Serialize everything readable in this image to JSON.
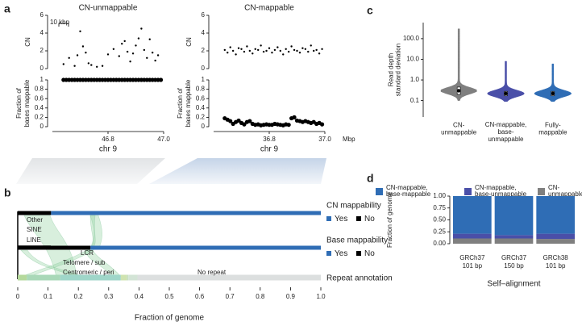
{
  "chart_data": [
    {
      "type": "scatter",
      "panel": "a",
      "title": "CN-unmappable",
      "ylabel": "CN",
      "annotation": "10 kbp",
      "color": "#000000",
      "x": [
        46.64,
        46.66,
        46.68,
        46.69,
        46.7,
        46.71,
        46.72,
        46.73,
        46.74,
        46.76,
        46.78,
        46.8,
        46.82,
        46.84,
        46.85,
        46.86,
        46.87,
        46.88,
        46.89,
        46.9,
        46.91,
        46.92,
        46.93,
        46.94,
        46.95,
        46.96,
        46.97,
        46.98
      ],
      "y": [
        0.5,
        1.2,
        0.3,
        1.5,
        4.2,
        2.5,
        1.8,
        0.6,
        0.4,
        0.2,
        0.3,
        1.6,
        2.2,
        1.4,
        2.8,
        3.1,
        1.9,
        0.8,
        1.7,
        2.6,
        3.4,
        4.5,
        2.1,
        1.2,
        3.3,
        1.8,
        0.9,
        1.5
      ],
      "xlim": [
        46.6,
        47.0
      ],
      "ylim": [
        0,
        6
      ],
      "yticks": [
        0,
        2,
        4,
        6
      ]
    },
    {
      "type": "scatter",
      "ylabel": [
        "Fraction of",
        "bases mappable"
      ],
      "xlabel": "chr 9",
      "color": "#000000",
      "x": [
        46.64,
        46.65,
        46.66,
        46.67,
        46.68,
        46.69,
        46.7,
        46.71,
        46.72,
        46.73,
        46.74,
        46.75,
        46.76,
        46.77,
        46.78,
        46.79,
        46.8,
        46.81,
        46.82,
        46.83,
        46.84,
        46.85,
        46.86,
        46.87,
        46.88,
        46.89,
        46.9,
        46.91,
        46.92,
        46.93,
        46.94,
        46.95,
        46.96,
        46.97,
        46.98,
        46.99
      ],
      "y": [
        1,
        1,
        1,
        1,
        1,
        1,
        1,
        1,
        1,
        1,
        1,
        1,
        1,
        1,
        1,
        1,
        1,
        1,
        1,
        1,
        1,
        1,
        1,
        1,
        1,
        1,
        1,
        1,
        1,
        1,
        1,
        1,
        1,
        1,
        1,
        1
      ],
      "xlim": [
        46.6,
        47.0
      ],
      "ylim": [
        0,
        1
      ],
      "yticks": [
        0,
        0.2,
        0.4,
        0.6,
        0.8,
        1
      ],
      "xticks": [
        46.8,
        {
          "value": 47,
          "label": "47.0"
        }
      ]
    },
    {
      "type": "scatter",
      "title": "CN-mappable",
      "title_color": "#2f6db5",
      "ylabel": "CN",
      "color": "#000000",
      "x": [
        36.64,
        36.65,
        36.66,
        36.67,
        36.68,
        36.69,
        36.7,
        36.71,
        36.72,
        36.73,
        36.74,
        36.75,
        36.76,
        36.77,
        36.78,
        36.79,
        36.8,
        36.81,
        36.82,
        36.83,
        36.84,
        36.85,
        36.86,
        36.87,
        36.88,
        36.89,
        36.9,
        36.91,
        36.92,
        36.93,
        36.94,
        36.95,
        36.96,
        36.97,
        36.98,
        36.99
      ],
      "y": [
        2.1,
        1.8,
        2.4,
        2.0,
        1.6,
        2.3,
        2.2,
        1.9,
        2.5,
        2.0,
        1.7,
        2.2,
        2.1,
        2.6,
        1.9,
        2.0,
        2.3,
        1.8,
        2.1,
        2.4,
        2.0,
        1.6,
        2.2,
        1.9,
        2.5,
        2.1,
        2.0,
        1.8,
        2.3,
        2.2,
        1.9,
        2.6,
        2.0,
        2.1,
        1.7,
        2.2
      ],
      "xlim": [
        36.6,
        37.0
      ],
      "ylim": [
        0,
        6
      ],
      "yticks": [
        0,
        2,
        4,
        6
      ]
    },
    {
      "type": "scatter",
      "ylabel": [
        "Fraction of",
        "bases mappable"
      ],
      "xlabel": "chr 9",
      "x_unit": "Mbp",
      "color": "#000000",
      "x": [
        36.64,
        36.65,
        36.66,
        36.67,
        36.68,
        36.69,
        36.7,
        36.71,
        36.72,
        36.73,
        36.74,
        36.75,
        36.76,
        36.77,
        36.78,
        36.79,
        36.8,
        36.81,
        36.82,
        36.83,
        36.84,
        36.85,
        36.86,
        36.87,
        36.88,
        36.89,
        36.9,
        36.91,
        36.92,
        36.93,
        36.94,
        36.95,
        36.96,
        36.97,
        36.98,
        36.99
      ],
      "y": [
        0.18,
        0.15,
        0.12,
        0.06,
        0.1,
        0.13,
        0.08,
        0.05,
        0.1,
        0.12,
        0.06,
        0.04,
        0.05,
        0.03,
        0.04,
        0.05,
        0.04,
        0.04,
        0.06,
        0.05,
        0.04,
        0.03,
        0.05,
        0.04,
        0.18,
        0.2,
        0.13,
        0.12,
        0.1,
        0.12,
        0.1,
        0.08,
        0.1,
        0.06,
        0.08,
        0.05
      ],
      "xlim": [
        36.6,
        37.0
      ],
      "ylim": [
        0,
        1
      ],
      "yticks": [
        0,
        0.2,
        0.4,
        0.6,
        0.8,
        1
      ],
      "xticks": [
        36.8,
        {
          "value": 37,
          "label": "37.0"
        }
      ]
    },
    {
      "type": "alluvial",
      "panel": "b",
      "xlabel": "Fraction of genome",
      "xlim": [
        0,
        1
      ],
      "xticks": [
        0,
        0.1,
        0.2,
        0.3,
        0.4,
        0.5,
        0.6,
        0.7,
        0.8,
        0.9,
        {
          "value": 1,
          "label": "1.0"
        }
      ],
      "rows": [
        {
          "name": "CN mappability",
          "segments": [
            {
              "name": "No",
              "value": 0.11,
              "color": "#000000"
            },
            {
              "name": "Yes",
              "value": 0.89,
              "color": "#2f6db5"
            }
          ]
        },
        {
          "name": "Base mappability",
          "segments": [
            {
              "name": "No",
              "value": 0.24,
              "color": "#000000"
            },
            {
              "name": "Yes",
              "value": 0.76,
              "color": "#2f6db5"
            }
          ]
        },
        {
          "name": "Repeat annotation",
          "segments": [
            {
              "name": "Other",
              "value": 0.03,
              "color": "#b5d99c"
            },
            {
              "name": "SINE",
              "value": 0.11,
              "color": "#a9d8b8"
            },
            {
              "name": "LINE",
              "value": 0.2,
              "color": "#9fd6c9"
            },
            {
              "name": "LCR",
              "value": 0.02,
              "color": "#cfe3b0"
            },
            {
              "name": "Telomere / sub",
              "value": 0.005,
              "color": "#c7dfc0"
            },
            {
              "name": "Centromeric / peri",
              "value": 0.03,
              "color": "#d3e4d6"
            },
            {
              "name": "No repeat",
              "value": 0.605,
              "color": "#dcdfdf"
            }
          ]
        }
      ]
    },
    {
      "type": "violin",
      "panel": "c",
      "ylabel": [
        "Read depth",
        "standard deviation"
      ],
      "log_y": true,
      "categories": [
        [
          "CN-",
          "unmappable"
        ],
        [
          "CN-mappable,",
          "base-",
          "unmappable"
        ],
        [
          "Fully-",
          "mappable"
        ]
      ],
      "colors": [
        "#7f7f7f",
        "#4a4fa8",
        "#2f6db5"
      ],
      "min": [
        0.1,
        0.09,
        0.09
      ],
      "q1": [
        0.2,
        0.17,
        0.17
      ],
      "median": [
        0.3,
        0.22,
        0.22
      ],
      "q3": [
        0.45,
        0.28,
        0.28
      ],
      "max": [
        300,
        8,
        6
      ],
      "ylim": [
        0.016,
        600
      ],
      "yticks": [
        0.1,
        {
          "value": 1,
          "label": "1.0"
        },
        {
          "value": 10,
          "label": "10.0"
        },
        {
          "value": 100,
          "label": "100.0"
        }
      ]
    },
    {
      "type": "stacked_bar",
      "panel": "d",
      "xlabel": "Self–alignment",
      "ylabel": "Fraction of genome",
      "categories": [
        [
          "GRCh37",
          "101 bp"
        ],
        [
          "GRCh37",
          "150 bp"
        ],
        [
          "GRCh38",
          "101 bp"
        ]
      ],
      "series": [
        {
          "name": [
            "CN-",
            "unmappable"
          ],
          "color": "#7f7f7f",
          "values": [
            0.11,
            0.11,
            0.1
          ]
        },
        {
          "name": [
            "CN-mappable,",
            "base-unmappable"
          ],
          "color": "#4a4fa8",
          "values": [
            0.1,
            0.07,
            0.11
          ]
        },
        {
          "name": [
            "CN-mappable,",
            "base-mappable"
          ],
          "color": "#2f6db5",
          "values": [
            0.79,
            0.82,
            0.79
          ]
        }
      ],
      "ylim": [
        0,
        1
      ],
      "yticks": [
        {
          "value": 0,
          "label": "0.00"
        },
        {
          "value": 0.25,
          "label": "0.25"
        },
        {
          "value": 0.5,
          "label": "0.50"
        },
        {
          "value": 0.75,
          "label": "0.75"
        },
        {
          "value": 1,
          "label": "1.00"
        }
      ]
    }
  ]
}
